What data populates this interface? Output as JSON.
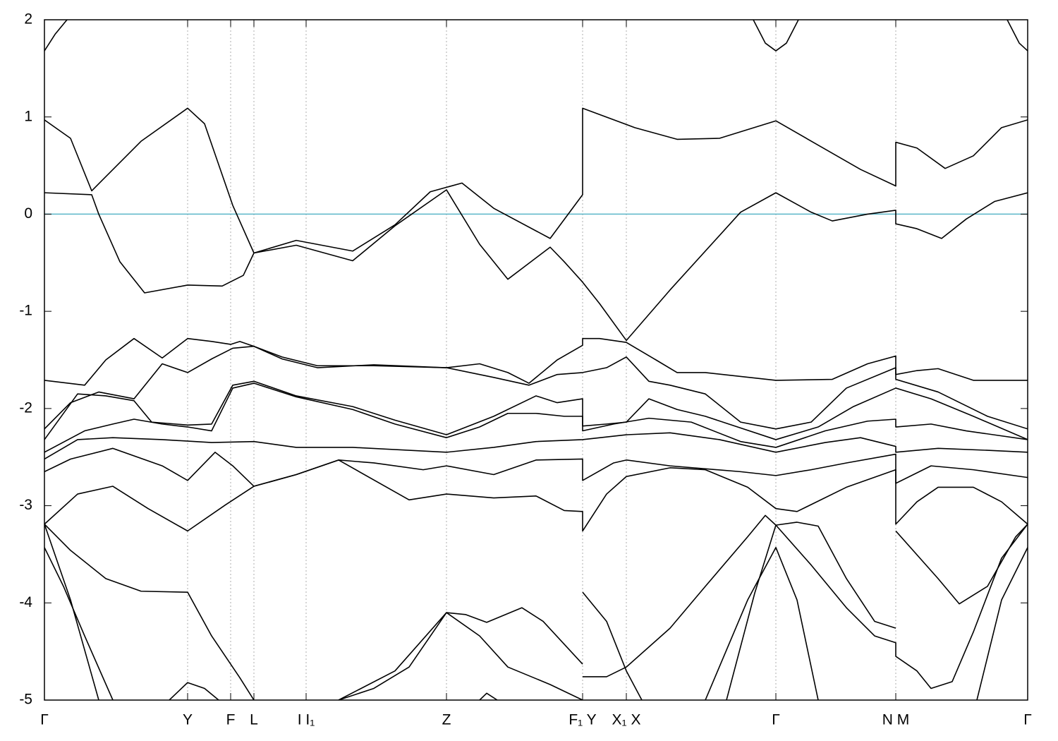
{
  "chart_data": {
    "type": "line",
    "xlim": [
      0,
      1.394
    ],
    "ylim": [
      -5,
      2
    ],
    "yticks": [
      -5,
      -4,
      -3,
      -2,
      -1,
      0,
      1,
      2
    ],
    "xticks": [
      {
        "value": 0,
        "label": "Γ"
      },
      {
        "value": 0.203,
        "label": "Y"
      },
      {
        "value": 0.264,
        "label": "F"
      },
      {
        "value": 0.297,
        "label": "L"
      },
      {
        "value": 0.371,
        "label": "I  I₁"
      },
      {
        "value": 0.57,
        "label": "Z"
      },
      {
        "value": 0.763,
        "label": "F₁ Y"
      },
      {
        "value": 0.825,
        "label": "X₁ X"
      },
      {
        "value": 1.037,
        "label": "Γ"
      },
      {
        "value": 1.207,
        "label": "N M"
      },
      {
        "value": 1.394,
        "label": "Γ"
      }
    ],
    "grid": "x",
    "hline": {
      "value": 0,
      "color": "#5bb6c8"
    },
    "line_color": "#000000",
    "series": [
      {
        "x": [
          0,
          0.015,
          0.032,
          null,
          1.005,
          1.022,
          1.037,
          1.052,
          1.069,
          null,
          1.365,
          1.382,
          1.394
        ],
        "values": [
          1.68,
          1.85,
          2.0,
          null,
          2.0,
          1.76,
          1.68,
          1.76,
          2.0,
          null,
          2.0,
          1.76,
          1.68
        ]
      },
      {
        "x": [
          0,
          0.037,
          0.067,
          0.137,
          0.203,
          0.227,
          0.267,
          0.297,
          0.357,
          0.437,
          0.497,
          0.547,
          0.592,
          0.637,
          0.717,
          0.763,
          0.763,
          0.837,
          0.897,
          0.957,
          1.037,
          1.097,
          1.157,
          1.207,
          1.207,
          1.237,
          1.277,
          1.317,
          1.357,
          1.394
        ],
        "values": [
          0.97,
          0.78,
          0.24,
          0.75,
          1.09,
          0.93,
          0.09,
          -0.4,
          -0.27,
          -0.38,
          -0.11,
          0.23,
          0.32,
          0.06,
          -0.25,
          0.2,
          1.09,
          0.89,
          0.77,
          0.78,
          0.96,
          0.71,
          0.46,
          0.29,
          0.74,
          0.68,
          0.47,
          0.6,
          0.89,
          0.97
        ]
      },
      {
        "x": [
          0,
          0.067,
          0.077,
          0.107,
          0.142,
          0.203,
          0.252,
          0.282,
          0.297,
          0.357,
          0.437,
          0.497,
          0.57,
          0.617,
          0.657,
          0.697,
          0.717,
          0.737,
          0.763,
          0.787,
          0.825,
          0.887,
          0.987,
          1.037,
          1.087,
          1.117,
          1.167,
          1.207,
          1.207,
          1.237,
          1.272,
          1.307,
          1.347,
          1.394
        ],
        "values": [
          0.22,
          0.2,
          0,
          -0.49,
          -0.81,
          -0.73,
          -0.74,
          -0.63,
          -0.4,
          -0.32,
          -0.48,
          -0.12,
          0.25,
          -0.31,
          -0.67,
          -0.45,
          -0.34,
          -0.49,
          -0.7,
          -0.92,
          -1.3,
          -0.78,
          0.02,
          0.22,
          0.02,
          -0.07,
          0,
          0.04,
          -0.1,
          -0.15,
          -0.25,
          -0.05,
          0.13,
          0.22
        ]
      },
      {
        "x": [
          0,
          0.057,
          0.087,
          0.127,
          0.167,
          0.203,
          0.237,
          0.264,
          0.277,
          0.297,
          0.337,
          0.387,
          0.467,
          0.57,
          0.617,
          0.657,
          0.687,
          0.727,
          0.763,
          0.763,
          0.787,
          0.825,
          0.867,
          0.897,
          0.937,
          1.037,
          1.117,
          1.167,
          1.207,
          1.207,
          1.237,
          1.267,
          1.317,
          1.394
        ],
        "values": [
          -1.71,
          -1.76,
          -1.5,
          -1.28,
          -1.48,
          -1.28,
          -1.31,
          -1.34,
          -1.31,
          -1.36,
          -1.49,
          -1.58,
          -1.55,
          -1.58,
          -1.54,
          -1.63,
          -1.74,
          -1.5,
          -1.35,
          -1.28,
          -1.28,
          -1.32,
          -1.5,
          -1.63,
          -1.63,
          -1.71,
          -1.7,
          -1.54,
          -1.46,
          -1.65,
          -1.61,
          -1.59,
          -1.71,
          -1.71
        ]
      },
      {
        "x": [
          0,
          0.037,
          0.077,
          0.127,
          0.167,
          0.203,
          0.237,
          0.267,
          0.297,
          0.337,
          0.387,
          0.467,
          0.57,
          0.637,
          0.687,
          0.727,
          0.763,
          0.797,
          0.825,
          0.857,
          0.887,
          0.937,
          0.987,
          1.037,
          1.087,
          1.137,
          1.207,
          1.207,
          1.267,
          1.337,
          1.394
        ],
        "values": [
          -2.21,
          -1.94,
          -1.83,
          -1.9,
          -1.54,
          -1.63,
          -1.49,
          -1.38,
          -1.36,
          -1.47,
          -1.56,
          -1.56,
          -1.58,
          -1.68,
          -1.76,
          -1.65,
          -1.63,
          -1.58,
          -1.47,
          -1.72,
          -1.76,
          -1.85,
          -2.14,
          -2.21,
          -2.14,
          -1.79,
          -1.58,
          -1.7,
          -1.83,
          -2.08,
          -2.21
        ]
      },
      {
        "x": [
          0,
          0.047,
          0.087,
          0.127,
          0.152,
          0.203,
          0.237,
          0.267,
          0.297,
          0.357,
          0.437,
          0.497,
          0.57,
          0.637,
          0.697,
          0.727,
          0.763,
          0.763,
          0.797,
          0.825,
          0.857,
          0.897,
          0.937,
          1.037,
          1.097,
          1.147,
          1.207,
          1.257,
          1.317,
          1.394
        ],
        "values": [
          -2.32,
          -1.85,
          -1.87,
          -1.92,
          -2.14,
          -2.17,
          -2.16,
          -1.76,
          -1.72,
          -1.87,
          -1.98,
          -2.12,
          -2.27,
          -2.08,
          -1.87,
          -1.94,
          -1.9,
          -2.18,
          -2.16,
          -2.14,
          -1.9,
          -2.01,
          -2.08,
          -2.32,
          -2.19,
          -1.98,
          -1.79,
          -1.9,
          -2.08,
          -2.32
        ]
      },
      {
        "x": [
          0,
          0.057,
          0.097,
          0.127,
          0.167,
          0.203,
          0.237,
          0.267,
          0.297,
          0.357,
          0.437,
          0.497,
          0.57,
          0.617,
          0.657,
          0.697,
          0.737,
          0.763,
          0.763,
          0.807,
          0.857,
          0.917,
          0.987,
          1.037,
          1.107,
          1.167,
          1.207,
          1.207,
          1.257,
          1.307,
          1.394
        ],
        "values": [
          -2.45,
          -2.23,
          -2.16,
          -2.11,
          -2.16,
          -2.19,
          -2.23,
          -1.79,
          -1.74,
          -1.88,
          -2.01,
          -2.16,
          -2.3,
          -2.19,
          -2.05,
          -2.05,
          -2.08,
          -2.08,
          -2.23,
          -2.16,
          -2.1,
          -2.14,
          -2.34,
          -2.4,
          -2.23,
          -2.13,
          -2.11,
          -2.19,
          -2.16,
          -2.23,
          -2.32
        ]
      },
      {
        "x": [
          0,
          0.047,
          0.097,
          0.167,
          0.237,
          0.297,
          0.357,
          0.437,
          0.57,
          0.637,
          0.697,
          0.763,
          0.825,
          0.887,
          0.957,
          1.037,
          1.107,
          1.157,
          1.207,
          1.207,
          1.267,
          1.337,
          1.394
        ],
        "values": [
          -2.52,
          -2.32,
          -2.3,
          -2.32,
          -2.35,
          -2.34,
          -2.4,
          -2.4,
          -2.45,
          -2.4,
          -2.34,
          -2.32,
          -2.27,
          -2.25,
          -2.32,
          -2.45,
          -2.35,
          -2.3,
          -2.39,
          -2.45,
          -2.41,
          -2.43,
          -2.45
        ]
      },
      {
        "x": [
          0,
          0.037,
          0.097,
          0.167,
          0.203,
          0.242,
          0.267,
          0.297,
          0.357,
          0.417,
          0.467,
          0.537,
          0.57,
          0.637,
          0.697,
          0.763,
          0.763,
          0.807,
          0.825,
          0.887,
          0.987,
          1.037,
          1.087,
          1.137,
          1.207,
          1.207,
          1.257,
          1.317,
          1.394
        ],
        "values": [
          -2.65,
          -2.52,
          -2.41,
          -2.59,
          -2.74,
          -2.45,
          -2.59,
          -2.8,
          -2.68,
          -2.53,
          -2.56,
          -2.63,
          -2.59,
          -2.68,
          -2.53,
          -2.52,
          -2.74,
          -2.56,
          -2.53,
          -2.59,
          -2.65,
          -2.69,
          -2.63,
          -2.56,
          -2.47,
          -2.77,
          -2.59,
          -2.63,
          -2.71
        ]
      },
      {
        "x": [
          0,
          0.047,
          0.097,
          0.147,
          0.203,
          0.257,
          0.297,
          0.357,
          0.417,
          0.517,
          0.57,
          0.637,
          0.697,
          0.737,
          0.763,
          0.763,
          0.797,
          0.825,
          0.887,
          0.937,
          0.997,
          1.037,
          1.067,
          1.137,
          1.207,
          1.207,
          1.237,
          1.267,
          1.317,
          1.357,
          1.394
        ],
        "values": [
          -3.19,
          -2.88,
          -2.8,
          -3.03,
          -3.26,
          -2.99,
          -2.8,
          -2.68,
          -2.53,
          -2.94,
          -2.88,
          -2.92,
          -2.9,
          -3.05,
          -3.06,
          -3.26,
          -2.88,
          -2.7,
          -2.61,
          -2.63,
          -2.81,
          -3.03,
          -3.06,
          -2.81,
          -2.63,
          -3.19,
          -2.96,
          -2.81,
          -2.81,
          -2.96,
          -3.19
        ]
      },
      {
        "x": [
          0,
          0.037,
          0.087,
          0.137,
          0.203,
          0.237,
          0.277,
          0.297
        ],
        "values": [
          -3.19,
          -3.46,
          -3.75,
          -3.88,
          -3.89,
          -4.34,
          -4.77,
          -5.0
        ]
      },
      {
        "x": [
          0,
          0.027,
          0.057,
          0.097
        ],
        "values": [
          -3.43,
          -3.83,
          -4.34,
          -5.0
        ]
      },
      {
        "x": [
          0,
          0.037,
          0.077
        ],
        "values": [
          -3.19,
          -3.97,
          -5.0
        ]
      },
      {
        "x": [
          0.177,
          0.203,
          0.227,
          0.247
        ],
        "values": [
          -5.0,
          -4.82,
          -4.88,
          -5.0
        ]
      },
      {
        "x": [
          0.417,
          0.467,
          0.517,
          0.57,
          0.597,
          0.627,
          0.677,
          0.707,
          0.763
        ],
        "values": [
          -5.0,
          -4.88,
          -4.66,
          -4.1,
          -4.12,
          -4.2,
          -4.05,
          -4.19,
          -4.63
        ]
      },
      {
        "x": [
          0.417,
          0.497,
          0.57,
          0.617,
          0.657,
          0.717,
          0.763
        ],
        "values": [
          -5.0,
          -4.7,
          -4.1,
          -4.34,
          -4.66,
          -4.84,
          -5.0
        ]
      },
      {
        "x": [
          0.617,
          0.627,
          0.642
        ],
        "values": [
          -5.0,
          -4.93,
          -5.0
        ]
      },
      {
        "x": [
          0.763,
          0.797,
          0.825,
          0.847
        ],
        "values": [
          -3.89,
          -4.19,
          -4.7,
          -5.0
        ]
      },
      {
        "x": [
          0.763,
          0.797,
          0.825,
          0.887,
          0.937,
          0.997,
          1.022,
          1.037,
          1.087,
          1.137,
          1.177,
          1.207,
          1.207,
          1.237,
          1.257,
          1.287,
          1.317,
          1.357,
          1.394
        ],
        "values": [
          -4.76,
          -4.76,
          -4.66,
          -4.26,
          -3.83,
          -3.32,
          -3.1,
          -3.2,
          -3.61,
          -4.05,
          -4.34,
          -4.41,
          -4.55,
          -4.7,
          -4.88,
          -4.81,
          -4.3,
          -3.54,
          -3.19
        ]
      },
      {
        "x": [
          0.937,
          0.997,
          1.037,
          1.067,
          1.097
        ],
        "values": [
          -5.0,
          -3.97,
          -3.43,
          -3.97,
          -5.0
        ]
      },
      {
        "x": [
          0.967,
          1.007,
          1.037,
          1.067,
          1.097,
          1.137,
          1.177,
          1.207
        ],
        "values": [
          -5.0,
          -3.9,
          -3.2,
          -3.17,
          -3.21,
          -3.75,
          -4.19,
          -4.26
        ]
      },
      {
        "x": [
          1.207,
          1.267,
          1.297,
          1.337,
          1.377,
          1.394
        ],
        "values": [
          -3.26,
          -3.75,
          -4.01,
          -3.83,
          -3.32,
          -3.19
        ]
      },
      {
        "x": [
          1.322,
          1.357,
          1.394
        ],
        "values": [
          -5.0,
          -3.97,
          -3.43
        ]
      }
    ]
  }
}
